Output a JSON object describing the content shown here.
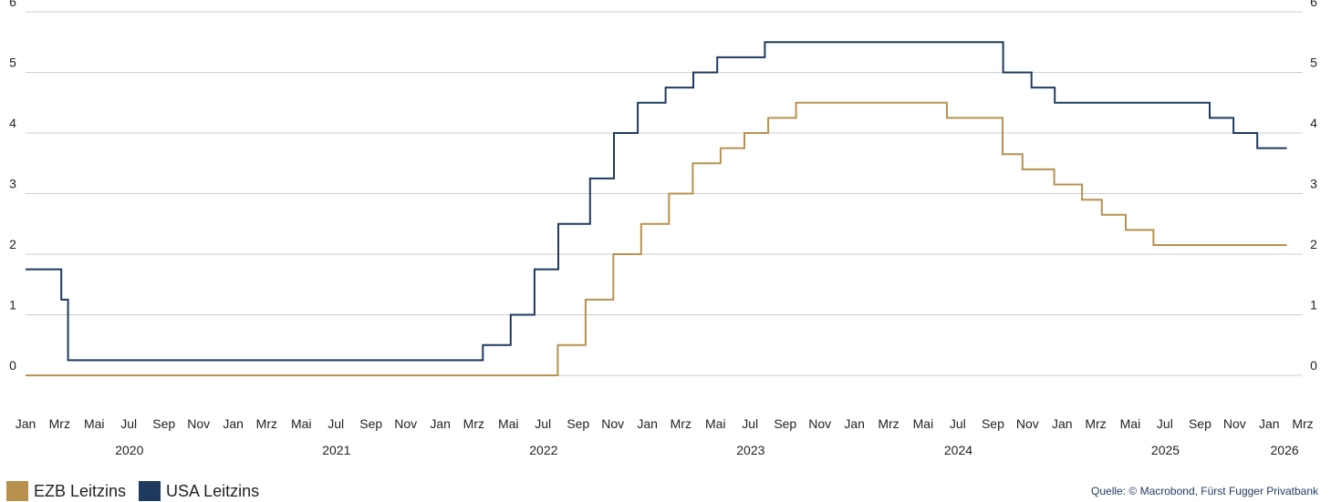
{
  "chart_data": {
    "type": "line",
    "step": true,
    "y_ticks": [
      0,
      1,
      2,
      3,
      4,
      5,
      6
    ],
    "ylim": [
      0,
      6
    ],
    "x_range": [
      "2020-01-01",
      "2026-03-01"
    ],
    "grid": true,
    "y_axis_both_sides": true,
    "month_tick_labels": [
      "Jan",
      "Mrz",
      "Mai",
      "Jul",
      "Sep",
      "Nov"
    ],
    "extra_month_tick_labels": [
      "Jan",
      "Mrz"
    ],
    "year_labels": [
      "2020",
      "2021",
      "2022",
      "2023",
      "2024",
      "2025",
      "2026"
    ],
    "series": [
      {
        "name": "EZB Leitzins",
        "color": "#b8914f",
        "points": [
          [
            "2020-01-01",
            0.0
          ],
          [
            "2022-07-27",
            0.5
          ],
          [
            "2022-09-14",
            1.25
          ],
          [
            "2022-11-02",
            2.0
          ],
          [
            "2022-12-21",
            2.5
          ],
          [
            "2023-02-08",
            3.0
          ],
          [
            "2023-03-22",
            3.5
          ],
          [
            "2023-05-10",
            3.75
          ],
          [
            "2023-06-21",
            4.0
          ],
          [
            "2023-08-02",
            4.25
          ],
          [
            "2023-09-20",
            4.5
          ],
          [
            "2024-06-12",
            4.25
          ],
          [
            "2024-09-18",
            3.65
          ],
          [
            "2024-10-23",
            3.4
          ],
          [
            "2024-12-18",
            3.15
          ],
          [
            "2025-02-05",
            2.9
          ],
          [
            "2025-03-12",
            2.65
          ],
          [
            "2025-04-23",
            2.4
          ],
          [
            "2025-06-11",
            2.15
          ],
          [
            "2026-02-01",
            2.15
          ]
        ]
      },
      {
        "name": "USA Leitzins",
        "color": "#1f3a5f",
        "points": [
          [
            "2020-01-01",
            1.75
          ],
          [
            "2020-03-04",
            1.25
          ],
          [
            "2020-03-16",
            0.25
          ],
          [
            "2022-03-17",
            0.5
          ],
          [
            "2022-05-05",
            1.0
          ],
          [
            "2022-06-16",
            1.75
          ],
          [
            "2022-07-28",
            2.5
          ],
          [
            "2022-09-22",
            3.25
          ],
          [
            "2022-11-03",
            4.0
          ],
          [
            "2022-12-15",
            4.5
          ],
          [
            "2023-02-02",
            4.75
          ],
          [
            "2023-03-23",
            5.0
          ],
          [
            "2023-05-04",
            5.25
          ],
          [
            "2023-07-27",
            5.5
          ],
          [
            "2024-09-19",
            5.0
          ],
          [
            "2024-11-08",
            4.75
          ],
          [
            "2024-12-19",
            4.5
          ],
          [
            "2025-09-18",
            4.25
          ],
          [
            "2025-10-30",
            4.0
          ],
          [
            "2025-12-11",
            3.75
          ],
          [
            "2026-02-01",
            3.75
          ]
        ]
      }
    ]
  },
  "legend": {
    "items": [
      {
        "label": "EZB Leitzins",
        "color": "#b8914f"
      },
      {
        "label": "USA Leitzins",
        "color": "#1f3a5f"
      }
    ]
  },
  "source": "Quelle: © Macrobond, Fürst Fugger Privatbank"
}
